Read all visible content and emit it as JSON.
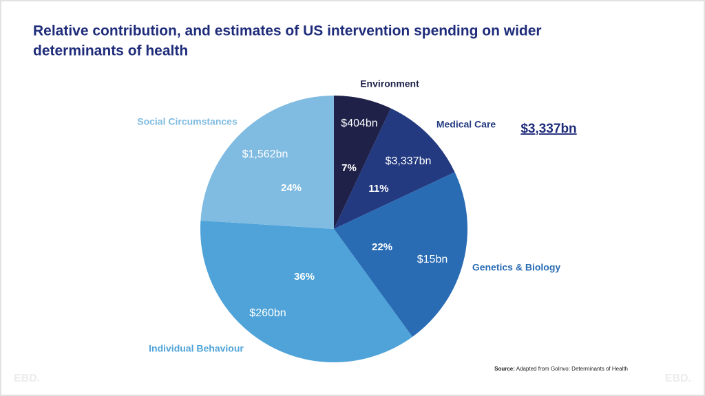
{
  "title_lines": [
    "Relative contribution, and estimates of US intervention spending on wider",
    "determinants of health"
  ],
  "chart_data": {
    "type": "pie",
    "categories": [
      "Environment",
      "Medical Care",
      "Genetics & Biology",
      "Individual Behaviour",
      "Social Circumstances"
    ],
    "values": [
      7,
      11,
      22,
      36,
      24
    ],
    "value_labels": [
      "7%",
      "11%",
      "22%",
      "36%",
      "24%"
    ],
    "spending_labels": [
      "$404bn",
      "$3,337bn",
      "$15bn",
      "$260bn",
      "$1,562bn"
    ],
    "colors": [
      "#1f2149",
      "#233a80",
      "#2a6cb4",
      "#4fa3d8",
      "#80bbe1"
    ]
  },
  "callout": "$3,337bn",
  "source": {
    "label": "Source:",
    "text": "Adapted from GoInvo: Determinants of Health"
  },
  "logo": "EBD."
}
